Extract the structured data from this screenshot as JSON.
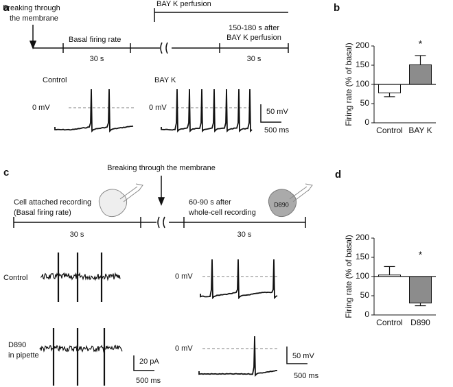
{
  "panel_a": {
    "label": "a",
    "breaking": [
      "Breaking through",
      "the membrane"
    ],
    "perfusion": "BAY K  perfusion",
    "basal": "Basal firing rate",
    "duration1": "30 s",
    "after": [
      "150-180 s after",
      "BAY K perfusion"
    ],
    "duration2": "30 s",
    "control": "Control",
    "bayk": "BAY K",
    "zero1": "0 mV",
    "zero2": "0 mV",
    "scale_v": "50 mV",
    "scale_t": "500 ms"
  },
  "panel_c": {
    "label": "c",
    "breaking": "Breaking through the membrane",
    "cell_attached": [
      "Cell attached recording",
      "(Basal firing rate)"
    ],
    "duration1": "30 s",
    "whole_cell": [
      "60-90 s after",
      "whole-cell recording"
    ],
    "duration2": "30 s",
    "cell_drug": "D890",
    "control": "Control",
    "d890": [
      "D890",
      "in pipette"
    ],
    "scale_i": "20 pA",
    "scale_t1": "500 ms",
    "zero1": "0 mV",
    "zero2": "0 mV",
    "scale_v": "50 mV",
    "scale_t2": "500 ms"
  },
  "chart_data": [
    {
      "type": "bar",
      "panel": "b",
      "ylabel": "Firing rate (% of basal)",
      "categories": [
        "Control",
        "BAY K"
      ],
      "values": [
        78,
        151
      ],
      "errors": [
        10,
        24
      ],
      "colors": [
        "#ffffff",
        "#8c8c8c"
      ],
      "baseline": 100,
      "ylim": [
        0,
        200
      ],
      "yticks": [
        0,
        50,
        100,
        150,
        200
      ],
      "annotation": "*"
    },
    {
      "type": "bar",
      "panel": "d",
      "ylabel": "Firing rate (% of basal)",
      "categories": [
        "Control",
        "D890"
      ],
      "values": [
        104,
        31
      ],
      "errors": [
        22,
        7
      ],
      "colors": [
        "#ffffff",
        "#8c8c8c"
      ],
      "baseline": 100,
      "ylim": [
        0,
        200
      ],
      "yticks": [
        0,
        50,
        100,
        150,
        200
      ],
      "annotation": "*"
    }
  ]
}
